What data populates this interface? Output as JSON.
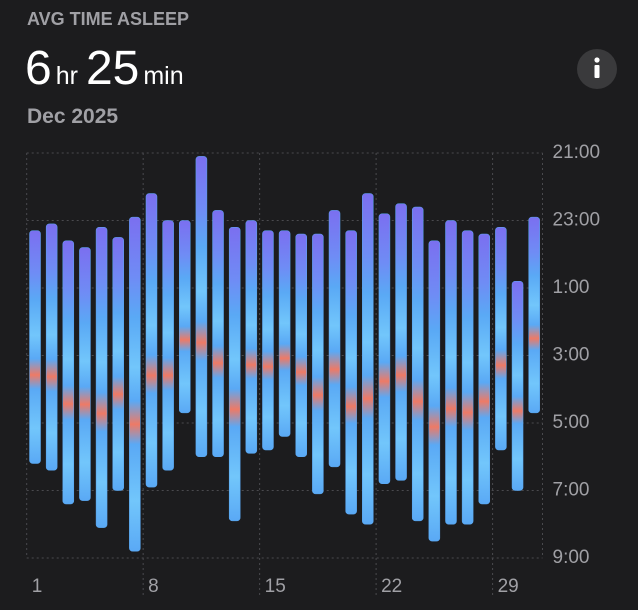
{
  "chart_data": {
    "type": "range-bar",
    "title": "AVG TIME ASLEEP",
    "avg_hours": 6,
    "hours_unit": "hr",
    "avg_minutes": 25,
    "minutes_unit": "min",
    "subtitle": "Dec 2025",
    "categories": [
      "1",
      null,
      null,
      null,
      null,
      null,
      null,
      "8",
      null,
      null,
      null,
      null,
      null,
      null,
      "15",
      null,
      null,
      null,
      null,
      null,
      null,
      "22",
      null,
      null,
      null,
      null,
      null,
      null,
      "29",
      null,
      null
    ],
    "low": [
      23.3,
      23.1,
      23.6,
      23.8,
      23.2,
      23.5,
      22.9,
      22.2,
      23.0,
      23.0,
      21.1,
      22.7,
      23.2,
      23.0,
      23.3,
      23.3,
      23.4,
      23.4,
      22.7,
      23.3,
      22.2,
      22.8,
      22.5,
      22.6,
      23.6,
      23.0,
      23.3,
      23.4,
      23.2,
      24.8,
      22.9
    ],
    "high": [
      30.2,
      30.4,
      31.4,
      31.3,
      32.1,
      31.0,
      32.8,
      30.9,
      30.4,
      28.7,
      30.0,
      30.0,
      31.9,
      29.9,
      29.8,
      29.4,
      30.0,
      31.1,
      30.3,
      31.7,
      32.0,
      30.8,
      30.7,
      31.9,
      32.5,
      32.0,
      32.0,
      31.4,
      29.8,
      31.0,
      28.7
    ],
    "color": "#5aa9f5",
    "ylim": [
      21,
      33
    ],
    "y_inverted": true,
    "yticks": [
      {
        "value": 21,
        "label": "21:00"
      },
      {
        "value": 23,
        "label": "23:00"
      },
      {
        "value": 25,
        "label": "1:00"
      },
      {
        "value": 27,
        "label": "3:00"
      },
      {
        "value": 29,
        "label": "5:00"
      },
      {
        "value": 31,
        "label": "7:00"
      },
      {
        "value": 33,
        "label": "9:00"
      }
    ],
    "grid": true
  }
}
